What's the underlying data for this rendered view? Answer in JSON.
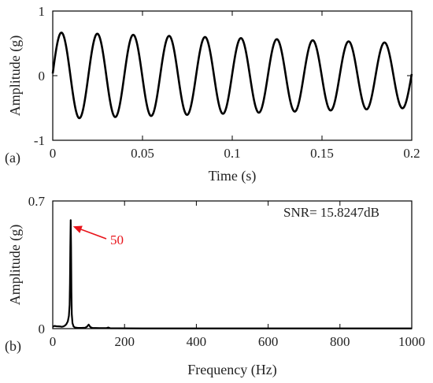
{
  "chart_data": [
    {
      "type": "line",
      "panel_label": "(a)",
      "xlabel": "Time (s)",
      "ylabel": "Amplitude (g)",
      "xlim": [
        0,
        0.2
      ],
      "ylim": [
        -1,
        1
      ],
      "xticks": [
        "0",
        "0.05",
        "0.1",
        "0.15",
        "0.2"
      ],
      "yticks": [
        "-1",
        "0",
        "1"
      ],
      "grid": false,
      "series": [
        {
          "signal": "sine",
          "frequency_hz": 50,
          "amplitude_start": 0.67,
          "amplitude_end": 0.5,
          "phase_at_t0": 0.05,
          "color": "#000000"
        }
      ]
    },
    {
      "type": "line",
      "panel_label": "(b)",
      "xlabel": "Frequency (Hz)",
      "ylabel": "Amplitude (g)",
      "xlim": [
        0,
        1000
      ],
      "ylim": [
        0,
        0.7
      ],
      "xticks": [
        "0",
        "200",
        "400",
        "600",
        "800",
        "1000"
      ],
      "yticks": [
        "0",
        "0.7"
      ],
      "grid": false,
      "series": [
        {
          "color": "#000000",
          "x": [
            0,
            5,
            10,
            20,
            25,
            30,
            35,
            38,
            42,
            45,
            47,
            48,
            49,
            50,
            51,
            52,
            53,
            55,
            58,
            62,
            70,
            80,
            90,
            95,
            100,
            105,
            110,
            130,
            150,
            155,
            160,
            180,
            250,
            400,
            600,
            800,
            1000
          ],
          "y": [
            0.01,
            0.015,
            0.013,
            0.012,
            0.01,
            0.012,
            0.018,
            0.025,
            0.04,
            0.07,
            0.13,
            0.25,
            0.45,
            0.595,
            0.45,
            0.2,
            0.08,
            0.03,
            0.012,
            0.006,
            0.004,
            0.004,
            0.005,
            0.01,
            0.022,
            0.008,
            0.004,
            0.003,
            0.003,
            0.006,
            0.002,
            0.002,
            0.001,
            0.001,
            0.001,
            0.001,
            0.001
          ]
        }
      ],
      "annotations": [
        {
          "text": "50",
          "x": 50,
          "y": 0.595,
          "color": "#e8141b"
        },
        {
          "text": "SNR= 15.8247dB"
        }
      ]
    }
  ]
}
